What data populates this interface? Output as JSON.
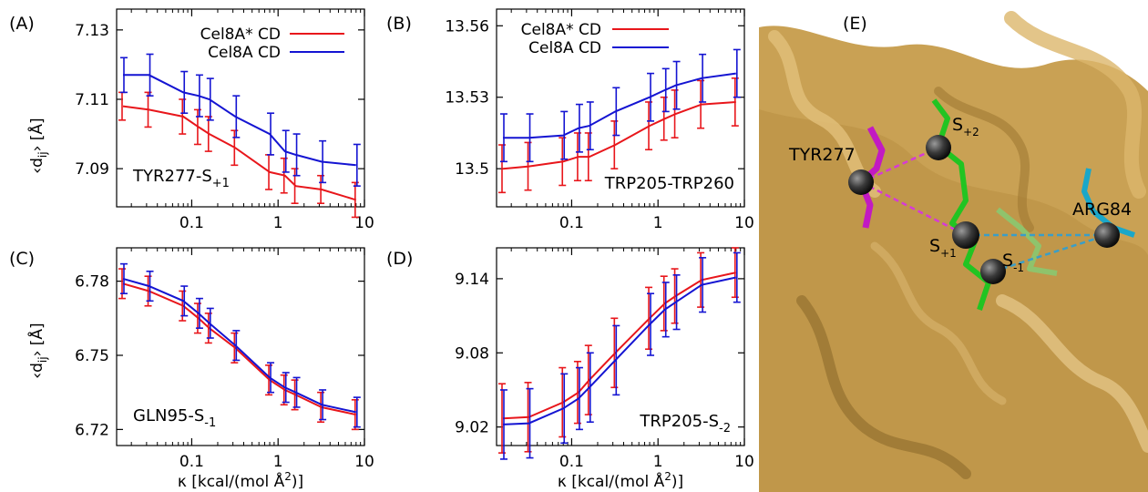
{
  "colors": {
    "series_red": "#e8161b",
    "series_blue": "#1414d2",
    "protein": "#c8a050",
    "background": "#ffffff"
  },
  "x_axis_label": "κ [kcal/(mol Å²)]",
  "y_axis_label": "<dij> [Å]",
  "chart_data": [
    {
      "panel": "(A)",
      "type": "line",
      "annotation": "TYR277-S+1",
      "legend_position": "top-right",
      "x_scale": "log",
      "x_ticks": [
        0.1,
        1,
        10
      ],
      "xlim": [
        0.0135,
        10
      ],
      "y_ticks": [
        7.09,
        7.11,
        7.13
      ],
      "ylim": [
        7.079,
        7.136
      ],
      "x": [
        0.016,
        0.032,
        0.08,
        0.12,
        0.16,
        0.32,
        0.8,
        1.2,
        1.6,
        3.2,
        8
      ],
      "series": [
        {
          "name": "Cel8A* CD",
          "color": "#e8161b",
          "values": [
            7.108,
            7.107,
            7.105,
            7.102,
            7.1,
            7.096,
            7.089,
            7.088,
            7.085,
            7.084,
            7.081
          ],
          "errors": [
            0.004,
            0.005,
            0.005,
            0.005,
            0.005,
            0.005,
            0.005,
            0.005,
            0.005,
            0.004,
            0.005
          ]
        },
        {
          "name": "Cel8A CD",
          "color": "#1414d2",
          "values": [
            7.117,
            7.117,
            7.112,
            7.111,
            7.11,
            7.105,
            7.1,
            7.095,
            7.094,
            7.092,
            7.091
          ],
          "errors": [
            0.005,
            0.006,
            0.006,
            0.006,
            0.006,
            0.006,
            0.006,
            0.006,
            0.006,
            0.006,
            0.006
          ]
        }
      ]
    },
    {
      "panel": "(B)",
      "type": "line",
      "annotation": "TRP205-TRP260",
      "legend_position": "top-left",
      "x_scale": "log",
      "x_ticks": [
        0.1,
        1,
        10
      ],
      "xlim": [
        0.0135,
        10
      ],
      "y_ticks": [
        13.5,
        13.53,
        13.56
      ],
      "ylim": [
        13.484,
        13.567
      ],
      "x": [
        0.016,
        0.032,
        0.08,
        0.12,
        0.16,
        0.32,
        0.8,
        1.2,
        1.6,
        3.2,
        8
      ],
      "series": [
        {
          "name": "Cel8A* CD",
          "color": "#e8161b",
          "values": [
            13.5,
            13.501,
            13.503,
            13.505,
            13.505,
            13.51,
            13.518,
            13.521,
            13.523,
            13.527,
            13.528
          ],
          "errors": [
            0.01,
            0.01,
            0.01,
            0.01,
            0.01,
            0.01,
            0.01,
            0.009,
            0.01,
            0.01,
            0.01
          ]
        },
        {
          "name": "Cel8A CD",
          "color": "#1414d2",
          "values": [
            13.513,
            13.513,
            13.514,
            13.517,
            13.518,
            13.524,
            13.53,
            13.533,
            13.535,
            13.538,
            13.54
          ],
          "errors": [
            0.01,
            0.01,
            0.01,
            0.01,
            0.01,
            0.01,
            0.01,
            0.009,
            0.01,
            0.01,
            0.01
          ]
        }
      ]
    },
    {
      "panel": "(C)",
      "type": "line",
      "annotation": "GLN95-S-1",
      "x_scale": "log",
      "x_ticks": [
        0.1,
        1,
        10
      ],
      "xlim": [
        0.0135,
        10
      ],
      "y_ticks": [
        6.72,
        6.75,
        6.78
      ],
      "ylim": [
        6.7135,
        6.7935
      ],
      "x": [
        0.016,
        0.032,
        0.08,
        0.12,
        0.16,
        0.32,
        0.8,
        1.2,
        1.6,
        3.2,
        8
      ],
      "series": [
        {
          "name": "Cel8A* CD",
          "color": "#e8161b",
          "values": [
            6.779,
            6.776,
            6.77,
            6.765,
            6.761,
            6.753,
            6.74,
            6.736,
            6.734,
            6.729,
            6.726
          ],
          "errors": [
            0.006,
            0.006,
            0.006,
            0.006,
            0.006,
            0.006,
            0.006,
            0.006,
            0.006,
            0.006,
            0.006
          ]
        },
        {
          "name": "Cel8A CD",
          "color": "#1414d2",
          "values": [
            6.781,
            6.778,
            6.772,
            6.767,
            6.763,
            6.754,
            6.741,
            6.737,
            6.735,
            6.73,
            6.727
          ],
          "errors": [
            0.006,
            0.006,
            0.006,
            0.006,
            0.006,
            0.006,
            0.006,
            0.006,
            0.006,
            0.006,
            0.006
          ]
        }
      ]
    },
    {
      "panel": "(D)",
      "type": "line",
      "annotation": "TRP205-S-2",
      "x_scale": "log",
      "x_ticks": [
        0.1,
        1,
        10
      ],
      "xlim": [
        0.0135,
        10
      ],
      "y_ticks": [
        9.02,
        9.08,
        9.14
      ],
      "ylim": [
        9.005,
        9.165
      ],
      "x": [
        0.016,
        0.032,
        0.08,
        0.12,
        0.16,
        0.32,
        0.8,
        1.2,
        1.6,
        3.2,
        8
      ],
      "series": [
        {
          "name": "Cel8A* CD",
          "color": "#e8161b",
          "values": [
            9.027,
            9.028,
            9.04,
            9.048,
            9.058,
            9.08,
            9.108,
            9.12,
            9.126,
            9.139,
            9.145
          ],
          "errors": [
            0.028,
            0.028,
            0.028,
            0.025,
            0.028,
            0.028,
            0.025,
            0.022,
            0.022,
            0.022,
            0.02
          ]
        },
        {
          "name": "Cel8A CD",
          "color": "#1414d2",
          "values": [
            9.022,
            9.023,
            9.035,
            9.043,
            9.052,
            9.074,
            9.103,
            9.115,
            9.121,
            9.135,
            9.141
          ],
          "errors": [
            0.028,
            0.028,
            0.028,
            0.025,
            0.028,
            0.028,
            0.025,
            0.022,
            0.022,
            0.022,
            0.02
          ]
        }
      ]
    }
  ],
  "structure_panel": {
    "panel": "(E)",
    "labels": {
      "tyr": "TYR277",
      "arg": "ARG84",
      "s_plus2": "S+2",
      "s_plus1": "S+1",
      "s_minus1": "S-1"
    }
  }
}
